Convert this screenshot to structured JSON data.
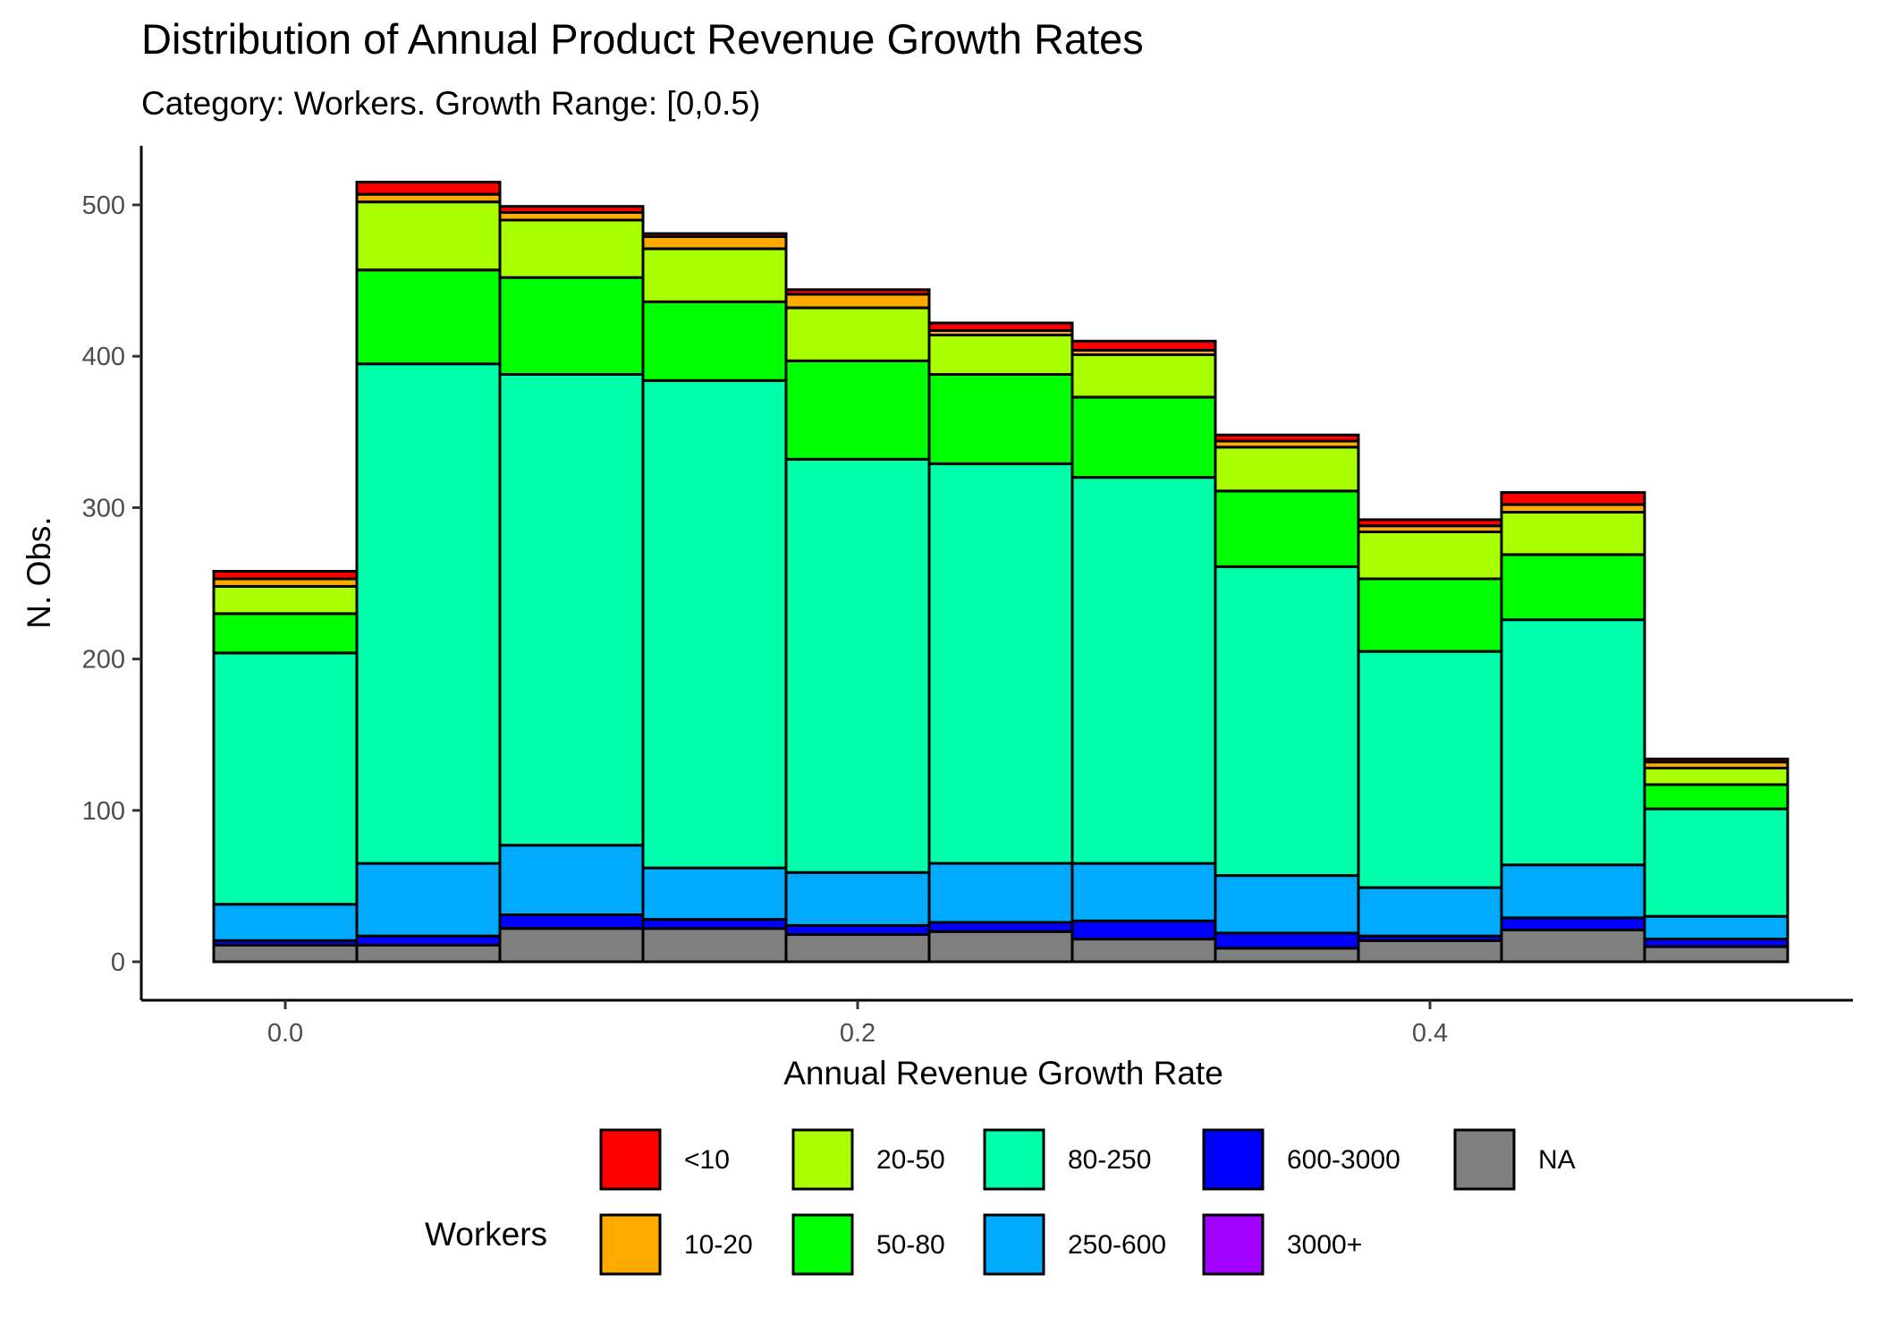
{
  "chart_data": {
    "type": "bar",
    "stacked": true,
    "title": "Distribution of Annual Product Revenue Growth Rates",
    "subtitle": "Category: Workers. Growth Range: [0,0.5)",
    "xlabel": "Annual Revenue Growth Rate",
    "ylabel": "N. Obs.",
    "x": [
      0.0,
      0.05,
      0.1,
      0.15,
      0.2,
      0.25,
      0.3,
      0.35,
      0.4,
      0.45,
      0.5
    ],
    "bin_width": 0.05,
    "xlim": [
      -0.05,
      0.55
    ],
    "ylim": [
      0,
      540
    ],
    "xticks": [
      0.0,
      0.2,
      0.4
    ],
    "xtick_labels": [
      "0.0",
      "0.2",
      "0.4"
    ],
    "yticks": [
      0,
      100,
      200,
      300,
      400,
      500
    ],
    "ytick_labels": [
      "0",
      "100",
      "200",
      "300",
      "400",
      "500"
    ],
    "grid": false,
    "legend": {
      "title": "Workers",
      "position": "bottom"
    },
    "series": [
      {
        "name": "NA",
        "color": "#808080",
        "values": [
          11,
          11,
          22,
          22,
          18,
          20,
          15,
          9,
          14,
          21,
          10
        ]
      },
      {
        "name": "3000+",
        "color": "#A000FF",
        "values": [
          0,
          0,
          0,
          0,
          0,
          0,
          0,
          0,
          0,
          0,
          0
        ]
      },
      {
        "name": "600-3000",
        "color": "#0000FF",
        "values": [
          3,
          6,
          9,
          6,
          6,
          6,
          12,
          10,
          3,
          8,
          5
        ]
      },
      {
        "name": "250-600",
        "color": "#00AAFF",
        "values": [
          24,
          48,
          46,
          34,
          35,
          39,
          38,
          38,
          32,
          35,
          15
        ]
      },
      {
        "name": "80-250",
        "color": "#00FFAA",
        "values": [
          166,
          330,
          311,
          322,
          273,
          264,
          255,
          204,
          156,
          162,
          71
        ]
      },
      {
        "name": "50-80",
        "color": "#00FF00",
        "values": [
          26,
          62,
          64,
          52,
          65,
          59,
          53,
          50,
          48,
          43,
          16
        ]
      },
      {
        "name": "20-50",
        "color": "#AAFF00",
        "values": [
          18,
          45,
          38,
          35,
          35,
          26,
          28,
          29,
          31,
          28,
          11
        ]
      },
      {
        "name": "10-20",
        "color": "#FFAA00",
        "values": [
          5,
          5,
          5,
          8,
          9,
          3,
          3,
          4,
          4,
          5,
          4
        ]
      },
      {
        "name": "<10",
        "color": "#FF0000",
        "values": [
          5,
          8,
          4,
          2,
          3,
          5,
          6,
          4,
          4,
          8,
          2
        ]
      }
    ],
    "legend_order": [
      "<10",
      "10-20",
      "20-50",
      "50-80",
      "80-250",
      "250-600",
      "600-3000",
      "3000+",
      "NA"
    ]
  }
}
